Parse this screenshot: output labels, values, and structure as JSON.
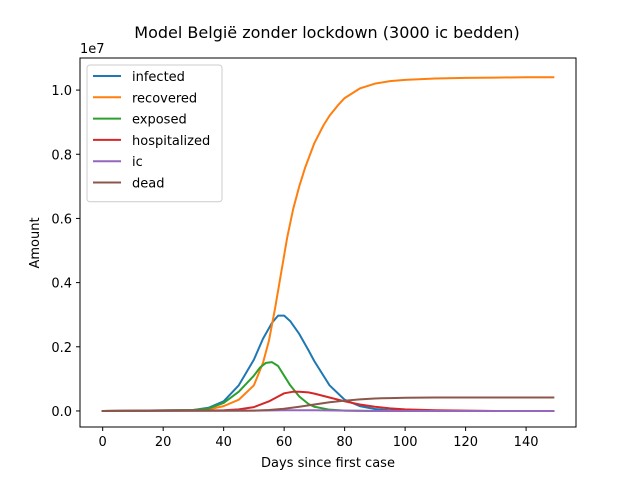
{
  "chart_data": {
    "type": "line",
    "title": "Model België zonder lockdown (3000 ic bedden)",
    "xlabel": "Days since first case",
    "ylabel": "Amount",
    "y_scale_label": "1e7",
    "xlim": [
      -7.5,
      156.5
    ],
    "ylim": [
      -0.05,
      1.1
    ],
    "x_ticks": [
      0,
      20,
      40,
      60,
      80,
      100,
      120,
      140
    ],
    "x_tick_labels": [
      "0",
      "20",
      "40",
      "60",
      "80",
      "100",
      "120",
      "140"
    ],
    "y_ticks": [
      0.0,
      0.2,
      0.4,
      0.6,
      0.8,
      1.0
    ],
    "y_tick_labels": [
      "0.0",
      "0.2",
      "0.4",
      "0.6",
      "0.8",
      "1.0"
    ],
    "grid": false,
    "legend_position": "top-left",
    "series": [
      {
        "name": "infected",
        "color": "#1f77b4",
        "x": [
          0,
          30,
          35,
          40,
          45,
          50,
          53,
          56,
          58,
          60,
          62,
          65,
          68,
          70,
          75,
          80,
          85,
          90,
          95,
          100,
          110,
          120,
          130,
          140,
          149
        ],
        "y": [
          0,
          0.003,
          0.01,
          0.03,
          0.08,
          0.16,
          0.225,
          0.275,
          0.297,
          0.297,
          0.28,
          0.24,
          0.19,
          0.155,
          0.08,
          0.035,
          0.015,
          0.006,
          0.002,
          0.001,
          0,
          0,
          0,
          0,
          0
        ]
      },
      {
        "name": "recovered",
        "color": "#ff7f0e",
        "x": [
          0,
          30,
          35,
          40,
          45,
          50,
          53,
          55,
          57,
          59,
          61,
          63,
          65,
          67,
          70,
          73,
          75,
          78,
          80,
          85,
          90,
          95,
          100,
          110,
          120,
          130,
          140,
          149
        ],
        "y": [
          0,
          0.002,
          0.005,
          0.015,
          0.035,
          0.08,
          0.15,
          0.22,
          0.32,
          0.43,
          0.54,
          0.63,
          0.7,
          0.76,
          0.835,
          0.89,
          0.92,
          0.955,
          0.975,
          1.005,
          1.02,
          1.028,
          1.032,
          1.036,
          1.038,
          1.039,
          1.04,
          1.04
        ]
      },
      {
        "name": "exposed",
        "color": "#2ca02c",
        "x": [
          0,
          30,
          35,
          40,
          45,
          48,
          50,
          52,
          54,
          56,
          58,
          60,
          62,
          65,
          68,
          70,
          75,
          80,
          90,
          100,
          120,
          149
        ],
        "y": [
          0,
          0.003,
          0.008,
          0.025,
          0.06,
          0.09,
          0.11,
          0.135,
          0.15,
          0.152,
          0.14,
          0.11,
          0.08,
          0.045,
          0.022,
          0.013,
          0.004,
          0.001,
          0,
          0,
          0,
          0
        ]
      },
      {
        "name": "hospitalized",
        "color": "#d62728",
        "x": [
          0,
          40,
          45,
          50,
          55,
          58,
          60,
          63,
          65,
          68,
          70,
          75,
          80,
          85,
          90,
          95,
          100,
          110,
          120,
          130,
          149
        ],
        "y": [
          0,
          0.002,
          0.005,
          0.012,
          0.03,
          0.045,
          0.055,
          0.06,
          0.06,
          0.058,
          0.054,
          0.042,
          0.03,
          0.02,
          0.013,
          0.008,
          0.005,
          0.002,
          0.001,
          0,
          0
        ]
      },
      {
        "name": "ic",
        "color": "#9467bd",
        "x": [
          0,
          50,
          60,
          70,
          80,
          90,
          100,
          120,
          149
        ],
        "y": [
          0,
          0.001,
          0.002,
          0.002,
          0.001,
          0,
          0,
          0,
          0
        ]
      },
      {
        "name": "dead",
        "color": "#8c564b",
        "x": [
          0,
          50,
          55,
          60,
          65,
          70,
          75,
          80,
          85,
          90,
          95,
          100,
          110,
          120,
          130,
          140,
          149
        ],
        "y": [
          0,
          0.001,
          0.003,
          0.007,
          0.013,
          0.02,
          0.027,
          0.032,
          0.036,
          0.039,
          0.04,
          0.041,
          0.042,
          0.042,
          0.042,
          0.042,
          0.042
        ]
      }
    ]
  }
}
